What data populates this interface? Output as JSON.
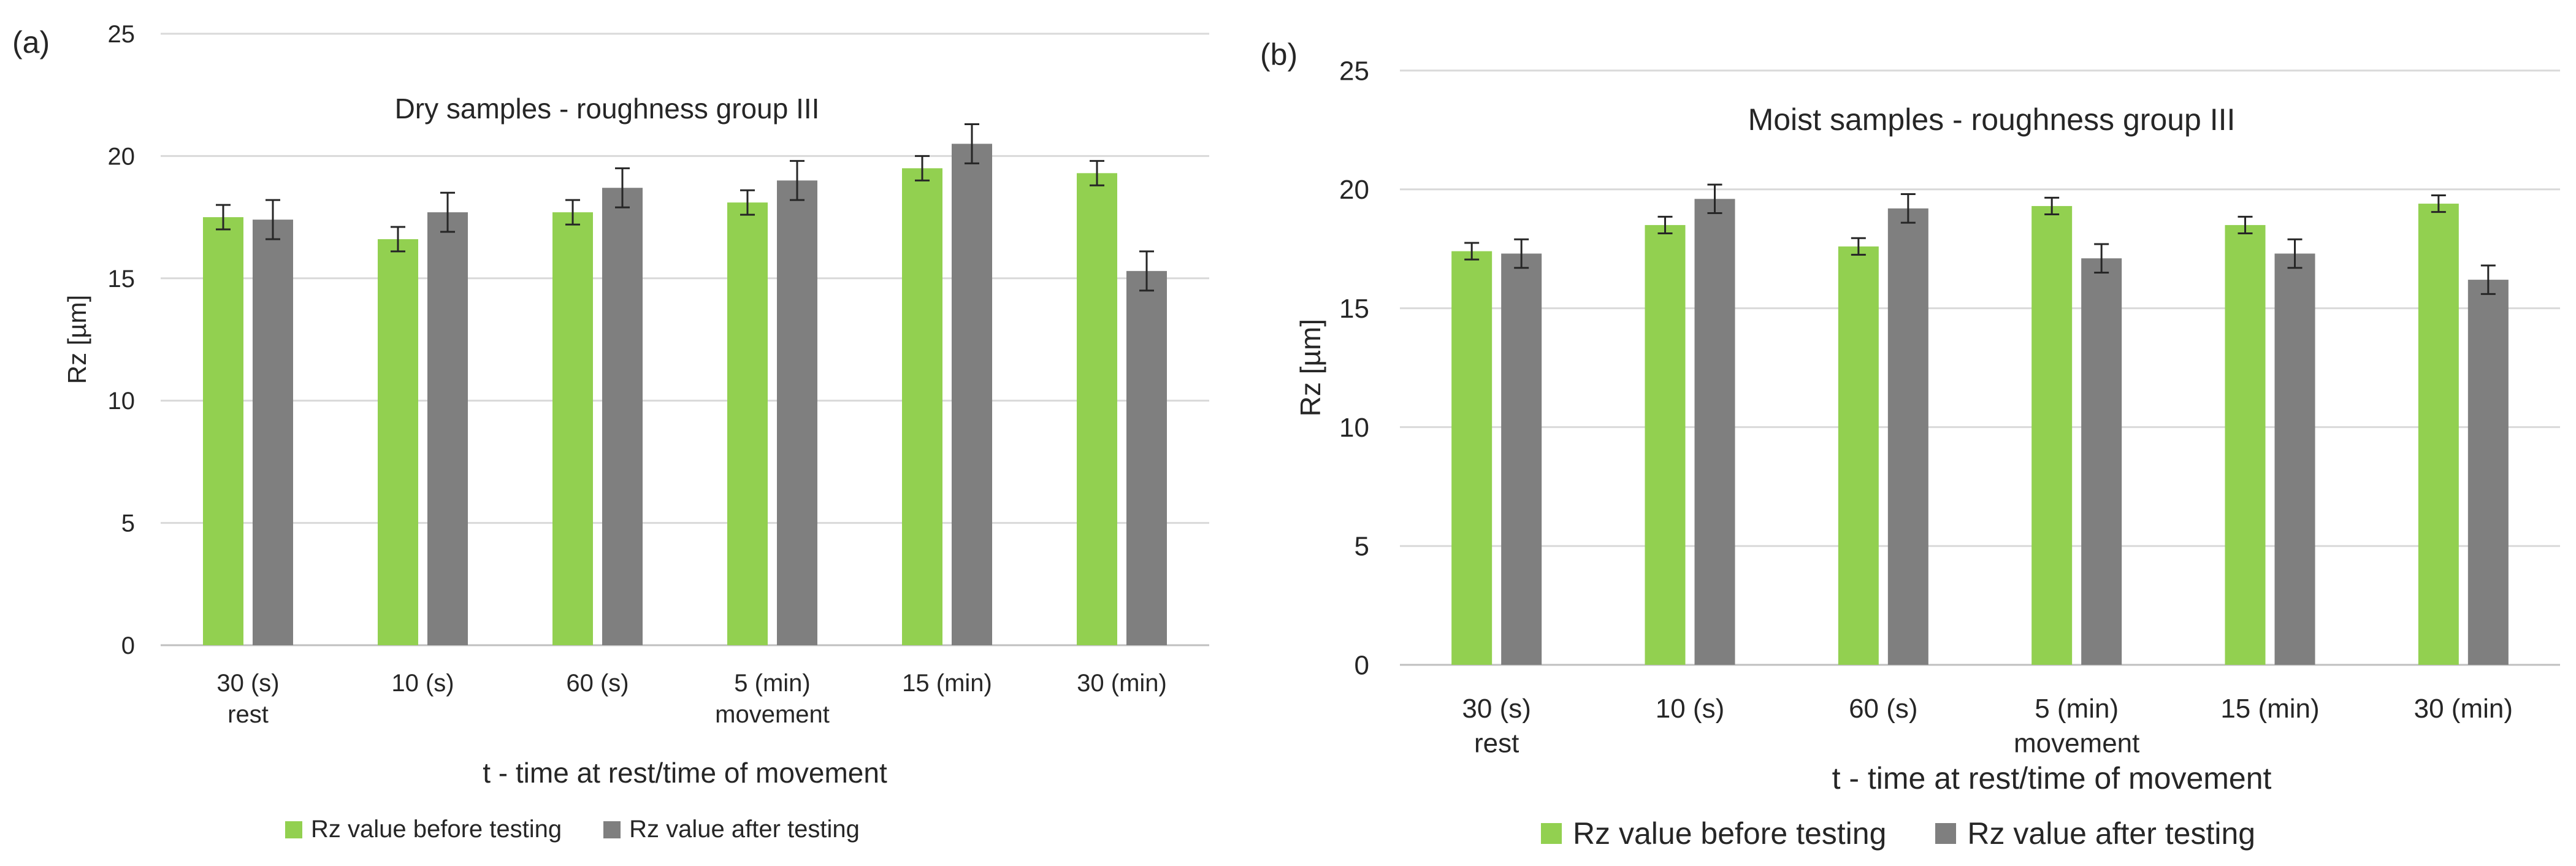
{
  "colors": {
    "before": "#92d050",
    "after": "#7f7f7f",
    "grid": "#d9d9d9",
    "axis": "#bfbfbf",
    "text": "#262626",
    "error": "#262626"
  },
  "chart_data": [
    {
      "panel_label": "(a)",
      "type": "bar",
      "title": "Dry samples - roughness group III",
      "xlabel": "t - time at rest/time of movement",
      "ylabel": "Rz [µm]",
      "ylim": [
        0,
        25
      ],
      "yticks": [
        0,
        5,
        10,
        15,
        20,
        25
      ],
      "grid": true,
      "legend_position": "bottom",
      "categories": [
        "30 (s)",
        "10 (s)",
        "60 (s)",
        "5 (min)",
        "15 (min)",
        "30 (min)"
      ],
      "category_group_labels": [
        {
          "label": "rest",
          "under_category": 0
        },
        {
          "label": "movement",
          "under_category": 3
        }
      ],
      "series": [
        {
          "name": "Rz value before testing",
          "color_key": "before",
          "values": [
            17.5,
            16.6,
            17.7,
            18.1,
            19.5,
            19.3
          ],
          "errors": [
            0.5,
            0.5,
            0.5,
            0.5,
            0.5,
            0.5
          ]
        },
        {
          "name": "Rz value after testing",
          "color_key": "after",
          "values": [
            17.4,
            17.7,
            18.7,
            19.0,
            20.5,
            15.3
          ],
          "errors": [
            0.8,
            0.8,
            0.8,
            0.8,
            0.8,
            0.8
          ]
        }
      ]
    },
    {
      "panel_label": "(b)",
      "type": "bar",
      "title": "Moist samples - roughness group III",
      "xlabel": "t - time at rest/time of movement",
      "ylabel": "Rz [µm]",
      "ylim": [
        0,
        25
      ],
      "yticks": [
        0,
        5,
        10,
        15,
        20,
        25
      ],
      "grid": true,
      "legend_position": "bottom",
      "categories": [
        "30 (s)",
        "10 (s)",
        "60 (s)",
        "5 (min)",
        "15 (min)",
        "30 (min)"
      ],
      "category_group_labels": [
        {
          "label": "rest",
          "under_category": 0
        },
        {
          "label": "movement",
          "under_category": 3
        }
      ],
      "series": [
        {
          "name": "Rz value before testing",
          "color_key": "before",
          "values": [
            17.4,
            18.5,
            17.6,
            19.3,
            18.5,
            19.4
          ],
          "errors": [
            0.35,
            0.35,
            0.35,
            0.35,
            0.35,
            0.35
          ]
        },
        {
          "name": "Rz value after testing",
          "color_key": "after",
          "values": [
            17.3,
            19.6,
            19.2,
            17.1,
            17.3,
            16.2
          ],
          "errors": [
            0.6,
            0.6,
            0.6,
            0.6,
            0.6,
            0.6
          ]
        }
      ]
    }
  ]
}
